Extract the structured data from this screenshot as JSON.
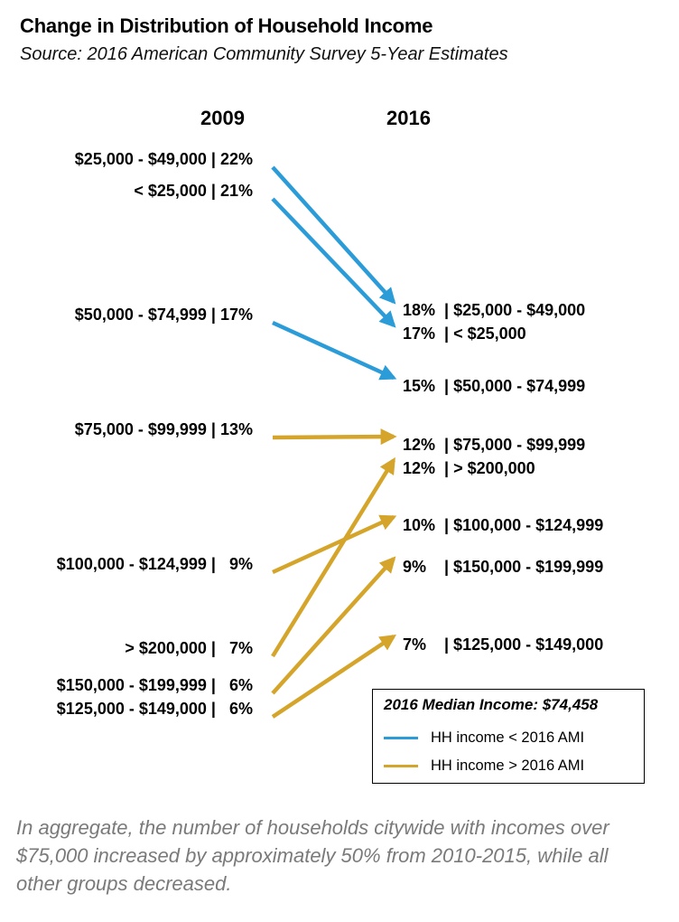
{
  "header": {
    "title": "Change in Distribution of Household Income",
    "subtitle": "Source: 2016 American Community Survey 5-Year Estimates"
  },
  "chart_data": {
    "type": "slope",
    "columns": [
      "2009",
      "2016"
    ],
    "groups": [
      {
        "label_2009": "$25,000 - $49,000 | 22%",
        "label_2016": "18%  | $25,000 - $49,000",
        "v2009": 22,
        "v2016": 18,
        "series": "below"
      },
      {
        "label_2009": "< $25,000 | 21%",
        "label_2016": "17%  | < $25,000",
        "v2009": 21,
        "v2016": 17,
        "series": "below"
      },
      {
        "label_2009": "$50,000 - $74,999 | 17%",
        "label_2016": "15%  | $50,000 - $74,999",
        "v2009": 17,
        "v2016": 15,
        "series": "below"
      },
      {
        "label_2009": "$75,000 - $99,999 | 13%",
        "label_2016": "12%  | $75,000 - $99,999",
        "v2009": 13,
        "v2016": 12,
        "series": "above"
      },
      {
        "label_2009": "> $200,000 |   7%",
        "label_2016": "12%  | > $200,000",
        "v2009": 7,
        "v2016": 12,
        "series": "above"
      },
      {
        "label_2009": "$100,000 - $124,999 |   9%",
        "label_2016": "10%  | $100,000 - $124,999",
        "v2009": 9,
        "v2016": 10,
        "series": "above"
      },
      {
        "label_2009": "$150,000 - $199,999 |   6%",
        "label_2016": "9%    | $150,000 - $199,999",
        "v2009": 6,
        "v2016": 9,
        "series": "above"
      },
      {
        "label_2009": "$125,000 - $149,000 |   6%",
        "label_2016": "7%    | $125,000 - $149,000",
        "v2009": 6,
        "v2016": 7,
        "series": "above"
      }
    ],
    "series": [
      {
        "name": "HH income < 2016 AMI",
        "key": "below",
        "color": "#2b9cd8"
      },
      {
        "name": "HH income > 2016 AMI",
        "key": "above",
        "color": "#d4a52a"
      }
    ]
  },
  "legend": {
    "title": "2016 Median Income: $74,458",
    "items": [
      {
        "label": "HH income < 2016 AMI",
        "color": "#2b9cd8"
      },
      {
        "label": "HH income > 2016 AMI",
        "color": "#d4a52a"
      }
    ]
  },
  "caption": "In aggregate, the number of households citywide with incomes over $75,000 increased by approximately 50%  from 2010-2015, while all other groups decreased."
}
